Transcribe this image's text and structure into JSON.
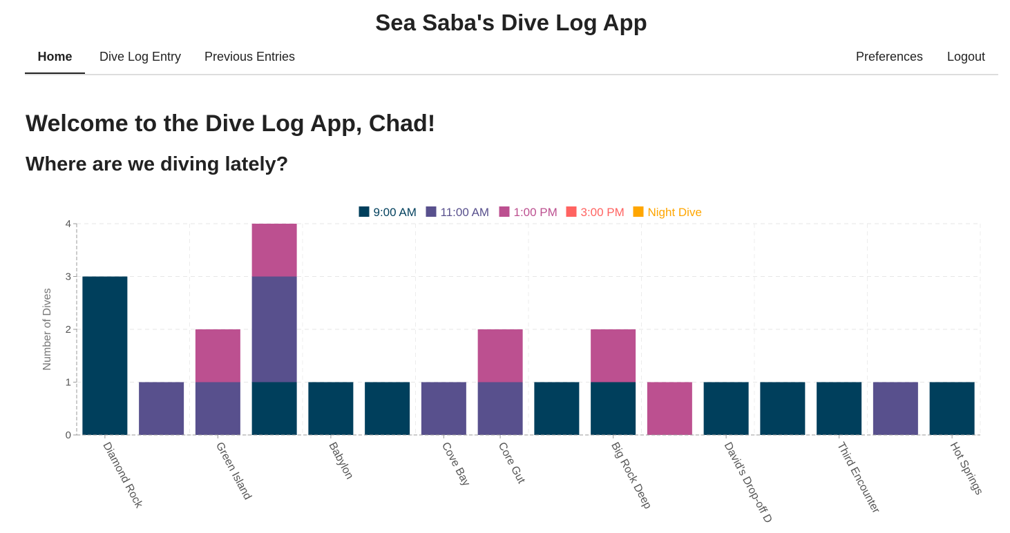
{
  "app": {
    "title": "Sea Saba's Dive Log App"
  },
  "nav": {
    "left": [
      {
        "label": "Home",
        "active": true
      },
      {
        "label": "Dive Log Entry",
        "active": false
      },
      {
        "label": "Previous Entries",
        "active": false
      }
    ],
    "right": [
      {
        "label": "Preferences"
      },
      {
        "label": "Logout"
      }
    ]
  },
  "main": {
    "welcome": "Welcome to the Dive Log App, Chad!",
    "subtitle": "Where are we diving lately?"
  },
  "chart_data": {
    "type": "bar",
    "stacked": true,
    "ylabel": "Number of Dives",
    "xlabel": "",
    "ylim": [
      0,
      4
    ],
    "y_ticks": [
      0,
      1,
      2,
      3,
      4
    ],
    "grid": true,
    "legend_position": "top-center",
    "categories": [
      "Diamond Rock",
      "",
      "Green Island",
      "",
      "Babylon",
      "",
      "Cove Bay",
      "Core Gut",
      "",
      "Big Rock Deep",
      "",
      "David's Drop-off D",
      "",
      "Third Encounter",
      "",
      "Hot Springs"
    ],
    "series": [
      {
        "name": "9:00 AM",
        "color": "#003f5c",
        "values": [
          3,
          0,
          0,
          1,
          1,
          1,
          0,
          0,
          1,
          1,
          0,
          1,
          1,
          1,
          0,
          1
        ]
      },
      {
        "name": "11:00 AM",
        "color": "#58508d",
        "values": [
          0,
          1,
          1,
          2,
          0,
          0,
          1,
          1,
          0,
          0,
          0,
          0,
          0,
          0,
          1,
          0
        ]
      },
      {
        "name": "1:00 PM",
        "color": "#bc5090",
        "values": [
          0,
          0,
          1,
          1,
          0,
          0,
          0,
          1,
          0,
          1,
          1,
          0,
          0,
          0,
          0,
          0
        ]
      },
      {
        "name": "3:00 PM",
        "color": "#ff6361",
        "values": [
          0,
          0,
          0,
          0,
          0,
          0,
          0,
          0,
          0,
          0,
          0,
          0,
          0,
          0,
          0,
          0
        ]
      },
      {
        "name": "Night Dive",
        "color": "#ffa600",
        "values": [
          0,
          0,
          0,
          0,
          0,
          0,
          0,
          0,
          0,
          0,
          0,
          0,
          0,
          0,
          0,
          0
        ]
      }
    ]
  }
}
